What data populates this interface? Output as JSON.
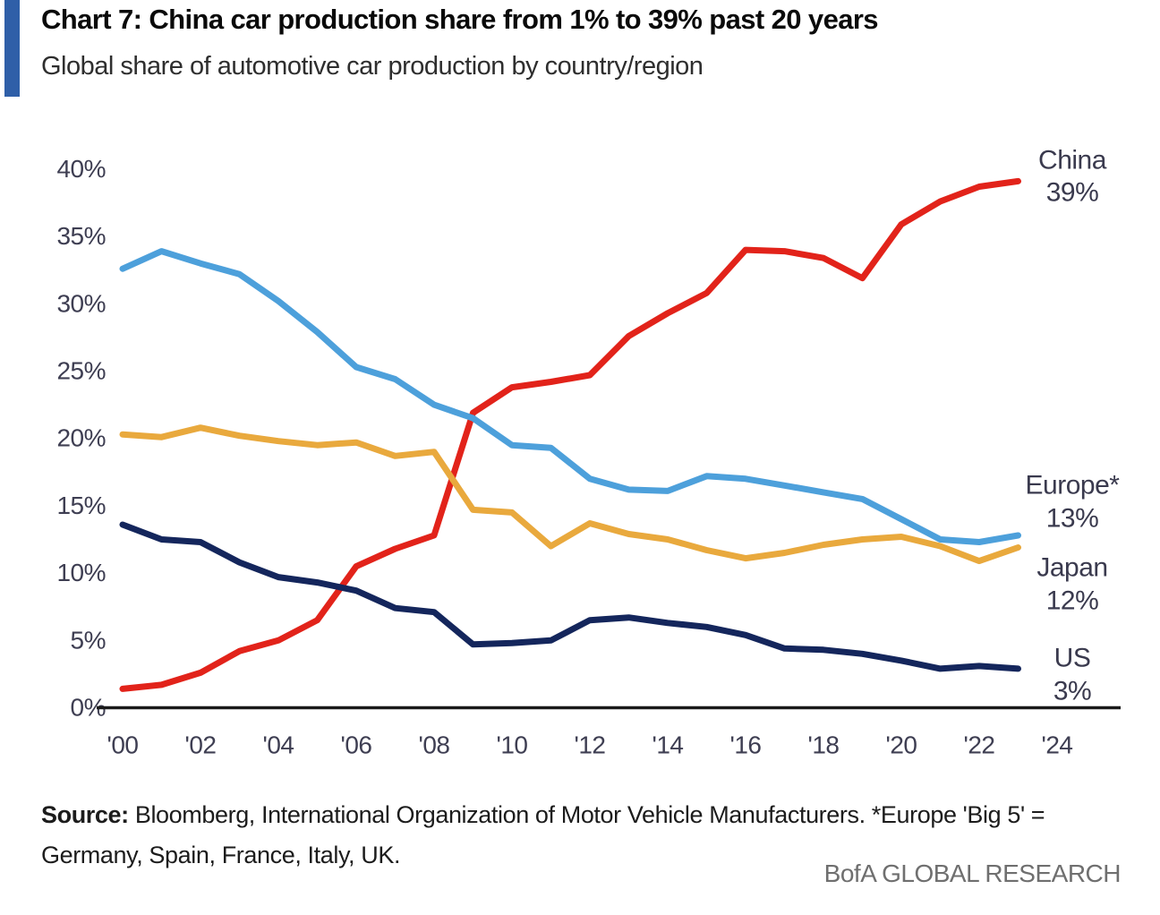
{
  "accent_color": "#2F5FA8",
  "header": {
    "title": "Chart 7: China car production share from 1% to 39% past 20 years",
    "subtitle": "Global share of automotive car production by country/region"
  },
  "chart_data": {
    "type": "line",
    "title": "Chart 7: China car production share from 1% to 39% past 20 years",
    "subtitle": "Global share of automotive car production by country/region",
    "grid": false,
    "legend_position": "right-end-labels",
    "xlim": [
      2000,
      2024
    ],
    "ylim": [
      0,
      40
    ],
    "x": [
      2000,
      2001,
      2002,
      2003,
      2004,
      2005,
      2006,
      2007,
      2008,
      2009,
      2010,
      2011,
      2012,
      2013,
      2014,
      2015,
      2016,
      2017,
      2018,
      2019,
      2020,
      2021,
      2022,
      2023
    ],
    "x_tick_labels": [
      "'00",
      "'02",
      "'04",
      "'06",
      "'08",
      "'10",
      "'12",
      "'14",
      "'16",
      "'18",
      "'20",
      "'22",
      "'24"
    ],
    "x_tick_years": [
      2000,
      2002,
      2004,
      2006,
      2008,
      2010,
      2012,
      2014,
      2016,
      2018,
      2020,
      2022,
      2024
    ],
    "y_ticks": [
      {
        "value": 0,
        "label": "0%"
      },
      {
        "value": 5,
        "label": "5%"
      },
      {
        "value": 10,
        "label": "10%"
      },
      {
        "value": 15,
        "label": "15%"
      },
      {
        "value": 20,
        "label": "20%"
      },
      {
        "value": 25,
        "label": "25%"
      },
      {
        "value": 30,
        "label": "30%"
      },
      {
        "value": 35,
        "label": "35%"
      },
      {
        "value": 40,
        "label": "40%"
      }
    ],
    "series": [
      {
        "name": "China",
        "color": "#E2231A",
        "end_label_lines": [
          "China",
          "39%"
        ],
        "values": [
          1.3,
          1.6,
          2.5,
          4.1,
          4.9,
          6.4,
          10.4,
          11.7,
          12.7,
          21.8,
          23.7,
          24.1,
          24.6,
          27.5,
          29.2,
          30.7,
          33.9,
          33.8,
          33.3,
          31.8,
          35.8,
          37.5,
          38.6,
          39.0
        ]
      },
      {
        "name": "Europe*",
        "color": "#4DA0DB",
        "end_label_lines": [
          "Europe*",
          "13%"
        ],
        "values": [
          32.5,
          33.8,
          32.9,
          32.1,
          30.1,
          27.8,
          25.2,
          24.3,
          22.4,
          21.4,
          19.4,
          19.2,
          16.9,
          16.1,
          16.0,
          17.1,
          16.9,
          16.4,
          15.9,
          15.4,
          13.9,
          12.4,
          12.2,
          12.7
        ]
      },
      {
        "name": "Japan",
        "color": "#E9A93D",
        "end_label_lines": [
          "Japan",
          "12%"
        ],
        "values": [
          20.2,
          20.0,
          20.7,
          20.1,
          19.7,
          19.4,
          19.6,
          18.6,
          18.9,
          14.6,
          14.4,
          11.9,
          13.6,
          12.8,
          12.4,
          11.6,
          11.0,
          11.4,
          12.0,
          12.4,
          12.6,
          11.9,
          10.8,
          11.8
        ]
      },
      {
        "name": "US",
        "color": "#14265C",
        "end_label_lines": [
          "US",
          "3%"
        ],
        "values": [
          13.5,
          12.4,
          12.2,
          10.7,
          9.6,
          9.2,
          8.6,
          7.3,
          7.0,
          4.6,
          4.7,
          4.9,
          6.4,
          6.6,
          6.2,
          5.9,
          5.3,
          4.3,
          4.2,
          3.9,
          3.4,
          2.8,
          3.0,
          2.8
        ]
      }
    ]
  },
  "footer": {
    "source_label": "Source:",
    "source_line1_rest": " Bloomberg, International Organization of Motor Vehicle Manufacturers. *Europe 'Big 5' =",
    "source_line2": "Germany, Spain, France, Italy, UK.",
    "brand": "BofA GLOBAL RESEARCH"
  }
}
